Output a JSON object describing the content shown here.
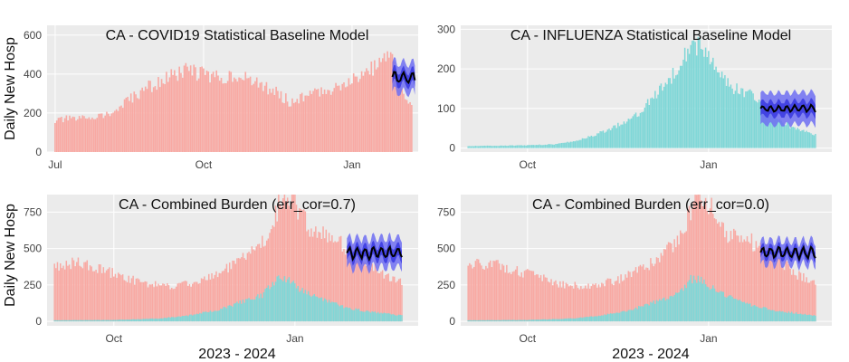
{
  "colors": {
    "covid_bar": "#f8a9a3",
    "flu_bar": "#7fd7d7",
    "band_outer": "#6f6ff2",
    "band_inner": "#3838e0",
    "median": "#000000",
    "panel_bg": "#ebebeb",
    "grid": "#ffffff"
  },
  "chart_data": [
    {
      "type": "bar",
      "title": "CA - COVID19 Statistical Baseline Model",
      "ylabel": "Daily New Hosp",
      "xlabel": "",
      "ylim": [
        0,
        650
      ],
      "yticks": [
        0,
        200,
        400,
        600
      ],
      "xticks": [
        "Jul",
        "Oct",
        "Jan"
      ],
      "x_range_days": [
        -5,
        225
      ],
      "xtick_days": [
        0,
        92,
        184
      ],
      "series": [
        {
          "kind": "bar",
          "color": "covid_bar",
          "start_day": 0,
          "end_day": 221,
          "anchors": [
            [
              0,
              160
            ],
            [
              7,
              170
            ],
            [
              15,
              170
            ],
            [
              25,
              185
            ],
            [
              35,
              195
            ],
            [
              45,
              260
            ],
            [
              55,
              320
            ],
            [
              65,
              360
            ],
            [
              75,
              400
            ],
            [
              85,
              420
            ],
            [
              90,
              405
            ],
            [
              100,
              380
            ],
            [
              110,
              400
            ],
            [
              125,
              350
            ],
            [
              135,
              320
            ],
            [
              145,
              260
            ],
            [
              150,
              270
            ],
            [
              160,
              300
            ],
            [
              170,
              320
            ],
            [
              185,
              380
            ],
            [
              195,
              420
            ],
            [
              200,
              450
            ],
            [
              205,
              480
            ],
            [
              210,
              470
            ],
            [
              215,
              300
            ],
            [
              221,
              230
            ]
          ]
        },
        {
          "kind": "band",
          "start_day": 209,
          "end_day": 223,
          "center": 380,
          "outer_half": 75,
          "inner_half": 35
        }
      ]
    },
    {
      "type": "bar",
      "title": "CA - INFLUENZA Statistical Baseline Model",
      "ylabel": "",
      "xlabel": "",
      "ylim": [
        -10,
        310
      ],
      "yticks": [
        0,
        100,
        200,
        300
      ],
      "xticks": [
        "Oct",
        "Jan"
      ],
      "x_range_days": [
        -5,
        245
      ],
      "xtick_days": [
        40,
        162
      ],
      "series": [
        {
          "kind": "bar",
          "color": "flu_bar",
          "start_day": 0,
          "end_day": 234,
          "anchors": [
            [
              0,
              5
            ],
            [
              20,
              6
            ],
            [
              40,
              7
            ],
            [
              60,
              10
            ],
            [
              75,
              20
            ],
            [
              90,
              40
            ],
            [
              105,
              65
            ],
            [
              115,
              90
            ],
            [
              125,
              130
            ],
            [
              135,
              170
            ],
            [
              143,
              220
            ],
            [
              150,
              265
            ],
            [
              158,
              255
            ],
            [
              165,
              210
            ],
            [
              172,
              170
            ],
            [
              180,
              150
            ],
            [
              190,
              140
            ],
            [
              200,
              100
            ],
            [
              210,
              70
            ],
            [
              220,
              50
            ],
            [
              234,
              35
            ]
          ]
        },
        {
          "kind": "band",
          "start_day": 197,
          "end_day": 234,
          "center": 100,
          "outer_half": 40,
          "inner_half": 18
        }
      ]
    },
    {
      "type": "bar",
      "title": "CA - Combined Burden (err_cor=0.7)",
      "ylabel": "Daily New Hosp",
      "xlabel": "2023 - 2024",
      "ylim": [
        -30,
        870
      ],
      "yticks": [
        0,
        250,
        500,
        750
      ],
      "xticks": [
        "Oct",
        "Jan"
      ],
      "x_range_days": [
        -5,
        245
      ],
      "xtick_days": [
        40,
        162
      ],
      "series": [
        {
          "kind": "bar",
          "color": "covid_bar",
          "start_day": 0,
          "end_day": 234,
          "anchors": [
            [
              0,
              380
            ],
            [
              15,
              400
            ],
            [
              30,
              360
            ],
            [
              45,
              310
            ],
            [
              60,
              260
            ],
            [
              80,
              240
            ],
            [
              100,
              280
            ],
            [
              120,
              380
            ],
            [
              135,
              490
            ],
            [
              145,
              620
            ],
            [
              152,
              820
            ],
            [
              160,
              850
            ],
            [
              168,
              700
            ],
            [
              175,
              600
            ],
            [
              185,
              580
            ],
            [
              195,
              520
            ],
            [
              210,
              420
            ],
            [
              220,
              330
            ],
            [
              234,
              270
            ]
          ]
        },
        {
          "kind": "bar",
          "color": "flu_bar",
          "start_day": 0,
          "end_day": 234,
          "anchors": [
            [
              0,
              8
            ],
            [
              40,
              10
            ],
            [
              70,
              20
            ],
            [
              90,
              40
            ],
            [
              110,
              80
            ],
            [
              125,
              130
            ],
            [
              140,
              180
            ],
            [
              150,
              290
            ],
            [
              158,
              280
            ],
            [
              168,
              200
            ],
            [
              180,
              150
            ],
            [
              195,
              100
            ],
            [
              210,
              70
            ],
            [
              234,
              40
            ]
          ]
        },
        {
          "kind": "band",
          "start_day": 197,
          "end_day": 234,
          "center": 470,
          "outer_half": 100,
          "inner_half": 45
        }
      ]
    },
    {
      "type": "bar",
      "title": "CA - Combined Burden (err_cor=0.0)",
      "ylabel": "",
      "xlabel": "2023 - 2024",
      "ylim": [
        -30,
        870
      ],
      "yticks": [
        0,
        250,
        500,
        750
      ],
      "xticks": [
        "Oct",
        "Jan"
      ],
      "x_range_days": [
        -5,
        245
      ],
      "xtick_days": [
        40,
        162
      ],
      "series": [
        {
          "kind": "bar",
          "color": "covid_bar",
          "start_day": 0,
          "end_day": 234,
          "anchors": [
            [
              0,
              380
            ],
            [
              15,
              400
            ],
            [
              30,
              360
            ],
            [
              45,
              310
            ],
            [
              60,
              260
            ],
            [
              80,
              240
            ],
            [
              100,
              280
            ],
            [
              120,
              380
            ],
            [
              135,
              490
            ],
            [
              145,
              620
            ],
            [
              152,
              820
            ],
            [
              160,
              850
            ],
            [
              168,
              700
            ],
            [
              175,
              600
            ],
            [
              185,
              580
            ],
            [
              195,
              520
            ],
            [
              210,
              420
            ],
            [
              220,
              330
            ],
            [
              234,
              270
            ]
          ]
        },
        {
          "kind": "bar",
          "color": "flu_bar",
          "start_day": 0,
          "end_day": 234,
          "anchors": [
            [
              0,
              8
            ],
            [
              40,
              10
            ],
            [
              70,
              20
            ],
            [
              90,
              40
            ],
            [
              110,
              80
            ],
            [
              125,
              130
            ],
            [
              140,
              180
            ],
            [
              150,
              290
            ],
            [
              158,
              280
            ],
            [
              168,
              200
            ],
            [
              180,
              150
            ],
            [
              195,
              100
            ],
            [
              210,
              70
            ],
            [
              234,
              40
            ]
          ]
        },
        {
          "kind": "band",
          "start_day": 197,
          "end_day": 234,
          "center": 470,
          "outer_half": 80,
          "inner_half": 35
        }
      ]
    }
  ]
}
